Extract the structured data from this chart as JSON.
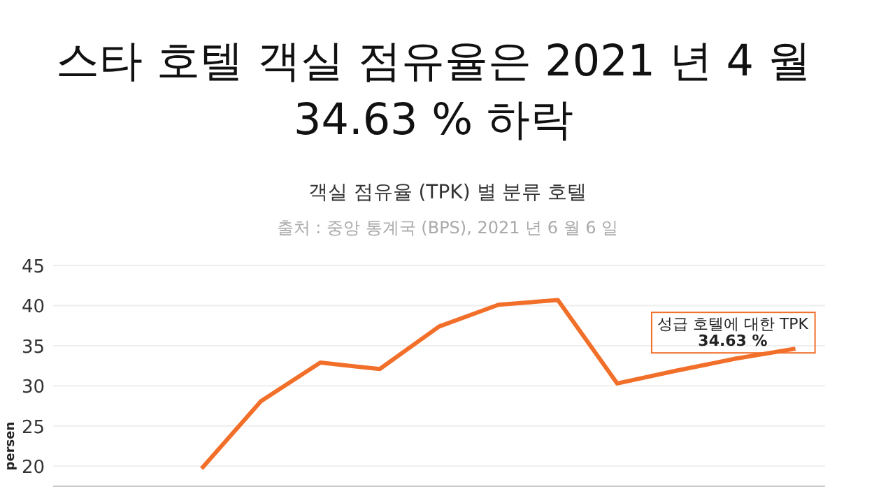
{
  "chart_data": {
    "type": "line",
    "title": "스타 호텔 객실 점유율은 2021 년 4 월 34.63 % 하락",
    "subtitle": "객실 점유율 (TPK) 별 분류 호텔",
    "ylabel": "persen",
    "annotations": [
      "출처 : 중앙 통계국 (BPS), 2021 년 6 월 6 일",
      "성급 호텔에 대한 TPK\n34.63 %"
    ],
    "categories": [
      null,
      null,
      null,
      null,
      null,
      null,
      null,
      null,
      null,
      null,
      null,
      null,
      null
    ],
    "series": [
      {
        "color": "#f26f2a",
        "values": [
          null,
          null,
          19.7,
          28.1,
          32.9,
          32.1,
          37.4,
          40.1,
          40.7,
          30.3,
          31.9,
          33.4,
          34.63
        ]
      }
    ],
    "ylim": [
      17.5,
      45
    ],
    "yticks": [
      20,
      25,
      30,
      35,
      40,
      45
    ],
    "grid": "y",
    "marker": "none",
    "line_style": "solid"
  }
}
